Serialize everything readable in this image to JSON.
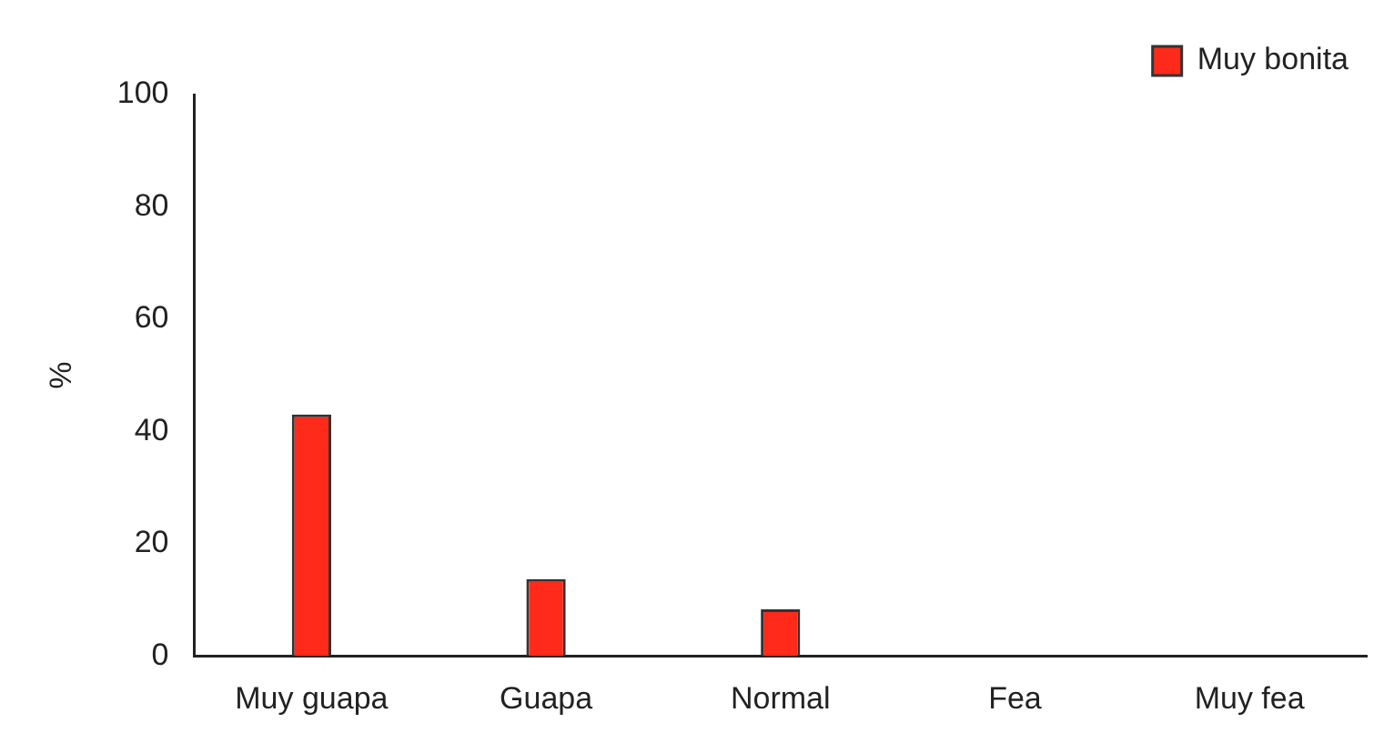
{
  "chart_data": {
    "type": "bar",
    "ylabel": "%",
    "categories": [
      "Muy guapa",
      "Guapa",
      "Normal",
      "Fea",
      "Muy fea"
    ],
    "series": [
      {
        "name": "Muy bonita",
        "color": "#ff2a1a",
        "values": [
          43,
          13.7,
          8.3,
          0,
          0
        ]
      }
    ],
    "ylim": [
      0,
      100
    ],
    "yticks": [
      0,
      20,
      40,
      60,
      80,
      100
    ],
    "grid": false,
    "legend": "top right"
  }
}
